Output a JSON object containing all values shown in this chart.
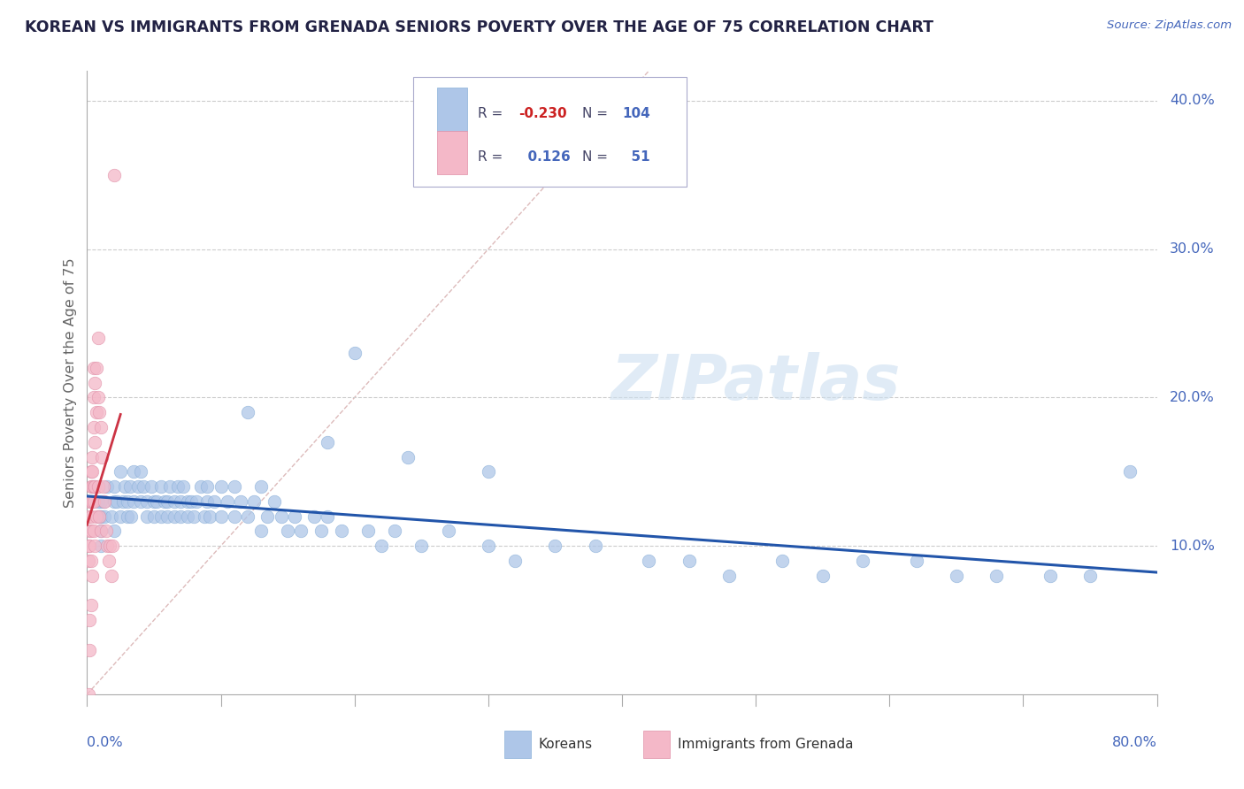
{
  "title": "KOREAN VS IMMIGRANTS FROM GRENADA SENIORS POVERTY OVER THE AGE OF 75 CORRELATION CHART",
  "source": "Source: ZipAtlas.com",
  "ylabel": "Seniors Poverty Over the Age of 75",
  "xlim": [
    0.0,
    0.8
  ],
  "ylim": [
    0.0,
    0.42
  ],
  "watermark": "ZIPatlas",
  "legend_R_korean": "-0.230",
  "legend_N_korean": "104",
  "legend_R_grenada": "0.126",
  "legend_N_grenada": "51",
  "blue_color": "#aec6e8",
  "pink_color": "#f4b8c8",
  "line_blue": "#2255aa",
  "line_pink": "#cc3344",
  "diag_color": "#ddbbbb",
  "grid_color": "#cccccc",
  "axis_label_color": "#4466bb",
  "title_color": "#222244",
  "ylabel_color": "#666666",
  "korean_x": [
    0.005,
    0.008,
    0.009,
    0.01,
    0.01,
    0.01,
    0.01,
    0.012,
    0.013,
    0.015,
    0.018,
    0.02,
    0.02,
    0.02,
    0.022,
    0.025,
    0.025,
    0.027,
    0.028,
    0.03,
    0.03,
    0.032,
    0.033,
    0.035,
    0.035,
    0.038,
    0.04,
    0.04,
    0.042,
    0.045,
    0.045,
    0.048,
    0.05,
    0.05,
    0.052,
    0.055,
    0.055,
    0.058,
    0.06,
    0.06,
    0.062,
    0.065,
    0.065,
    0.068,
    0.07,
    0.07,
    0.072,
    0.075,
    0.075,
    0.078,
    0.08,
    0.082,
    0.085,
    0.088,
    0.09,
    0.09,
    0.092,
    0.095,
    0.1,
    0.1,
    0.105,
    0.11,
    0.11,
    0.115,
    0.12,
    0.125,
    0.13,
    0.13,
    0.135,
    0.14,
    0.145,
    0.15,
    0.155,
    0.16,
    0.17,
    0.175,
    0.18,
    0.19,
    0.2,
    0.21,
    0.22,
    0.23,
    0.25,
    0.27,
    0.3,
    0.32,
    0.35,
    0.38,
    0.42,
    0.45,
    0.48,
    0.52,
    0.55,
    0.58,
    0.62,
    0.65,
    0.68,
    0.72,
    0.75,
    0.78,
    0.12,
    0.18,
    0.24,
    0.3
  ],
  "korean_y": [
    0.14,
    0.13,
    0.12,
    0.13,
    0.12,
    0.11,
    0.1,
    0.13,
    0.12,
    0.14,
    0.12,
    0.14,
    0.13,
    0.11,
    0.13,
    0.15,
    0.12,
    0.13,
    0.14,
    0.13,
    0.12,
    0.14,
    0.12,
    0.15,
    0.13,
    0.14,
    0.15,
    0.13,
    0.14,
    0.13,
    0.12,
    0.14,
    0.13,
    0.12,
    0.13,
    0.14,
    0.12,
    0.13,
    0.13,
    0.12,
    0.14,
    0.13,
    0.12,
    0.14,
    0.13,
    0.12,
    0.14,
    0.13,
    0.12,
    0.13,
    0.12,
    0.13,
    0.14,
    0.12,
    0.13,
    0.14,
    0.12,
    0.13,
    0.14,
    0.12,
    0.13,
    0.14,
    0.12,
    0.13,
    0.12,
    0.13,
    0.14,
    0.11,
    0.12,
    0.13,
    0.12,
    0.11,
    0.12,
    0.11,
    0.12,
    0.11,
    0.12,
    0.11,
    0.23,
    0.11,
    0.1,
    0.11,
    0.1,
    0.11,
    0.1,
    0.09,
    0.1,
    0.1,
    0.09,
    0.09,
    0.08,
    0.09,
    0.08,
    0.09,
    0.09,
    0.08,
    0.08,
    0.08,
    0.08,
    0.15,
    0.19,
    0.17,
    0.16,
    0.15
  ],
  "grenada_x": [
    0.001,
    0.001,
    0.001,
    0.001,
    0.002,
    0.002,
    0.002,
    0.002,
    0.002,
    0.003,
    0.003,
    0.003,
    0.003,
    0.003,
    0.003,
    0.003,
    0.004,
    0.004,
    0.004,
    0.004,
    0.004,
    0.005,
    0.005,
    0.005,
    0.005,
    0.005,
    0.005,
    0.006,
    0.006,
    0.006,
    0.006,
    0.007,
    0.007,
    0.007,
    0.008,
    0.008,
    0.008,
    0.009,
    0.009,
    0.01,
    0.01,
    0.011,
    0.012,
    0.013,
    0.014,
    0.015,
    0.016,
    0.017,
    0.018,
    0.019,
    0.02
  ],
  "grenada_y": [
    0.12,
    0.1,
    0.09,
    0.0,
    0.13,
    0.11,
    0.1,
    0.05,
    0.03,
    0.15,
    0.14,
    0.13,
    0.12,
    0.11,
    0.09,
    0.06,
    0.16,
    0.15,
    0.14,
    0.13,
    0.08,
    0.22,
    0.2,
    0.18,
    0.14,
    0.13,
    0.11,
    0.21,
    0.17,
    0.14,
    0.1,
    0.22,
    0.19,
    0.12,
    0.24,
    0.2,
    0.14,
    0.19,
    0.12,
    0.18,
    0.11,
    0.16,
    0.14,
    0.13,
    0.11,
    0.1,
    0.09,
    0.1,
    0.08,
    0.1,
    0.35
  ]
}
